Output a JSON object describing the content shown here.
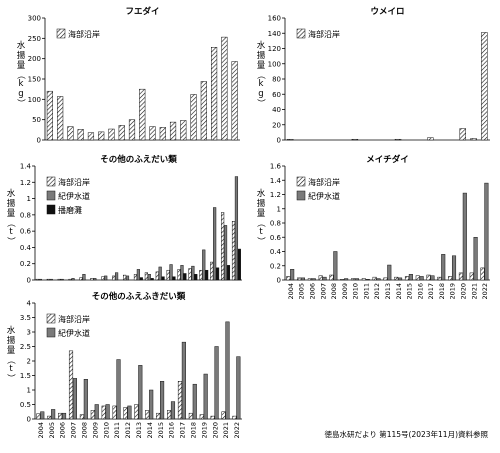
{
  "colors": {
    "axis": "#000000",
    "hatch_line": "#111111",
    "gray_bar": "#7a7a7a",
    "black_bar": "#111111"
  },
  "source_note": "徳島水研だより 第115号(2023年11月)資料参照",
  "x_categories": [
    "2004",
    "2005",
    "2006",
    "2007",
    "2008",
    "2009",
    "2010",
    "2011",
    "2012",
    "2013",
    "2014",
    "2015",
    "2016",
    "2017",
    "2018",
    "2019",
    "2020",
    "2021",
    "2022"
  ],
  "chart_data": [
    {
      "type": "bar",
      "title": "フエダイ",
      "ylabel": "水揚量（kg）",
      "ylim": [
        0,
        300
      ],
      "yticks": [
        0,
        50,
        100,
        150,
        200,
        250,
        300
      ],
      "series": [
        {
          "name": "海部沿岸",
          "pattern": "hatch",
          "values": [
            120,
            107,
            33,
            26,
            18,
            20,
            27,
            36,
            50,
            125,
            33,
            31,
            44,
            48,
            112,
            144,
            228,
            253,
            193
          ]
        }
      ]
    },
    {
      "type": "bar",
      "title": "ウメイロ",
      "ylabel": "水揚量（kg）",
      "ylim": [
        0,
        160
      ],
      "yticks": [
        0,
        20,
        40,
        60,
        80,
        100,
        120,
        140,
        160
      ],
      "series": [
        {
          "name": "海部沿岸",
          "pattern": "hatch",
          "values": [
            1,
            0,
            0,
            0,
            0,
            0,
            1,
            0,
            0,
            0,
            1,
            0,
            0,
            3,
            0,
            0,
            15,
            2,
            141
          ]
        }
      ]
    },
    {
      "type": "bar",
      "title": "その他のふえだい類",
      "ylabel": "水揚量（t）",
      "ylim": [
        0,
        1.4
      ],
      "yticks": [
        0,
        0.2,
        0.4,
        0.6,
        0.8,
        1,
        1.2,
        1.4
      ],
      "series": [
        {
          "name": "海部沿岸",
          "pattern": "hatch",
          "values": [
            0.01,
            0.01,
            0.01,
            0.01,
            0.03,
            0.02,
            0.04,
            0.05,
            0.06,
            0.07,
            0.09,
            0.1,
            0.12,
            0.13,
            0.14,
            0.12,
            0.22,
            0.83,
            0.72
          ]
        },
        {
          "name": "紀伊水道",
          "pattern": "gray",
          "values": [
            0.01,
            0.01,
            0.01,
            0.02,
            0.07,
            0.02,
            0.05,
            0.09,
            0.05,
            0.13,
            0.07,
            0.16,
            0.19,
            0.18,
            0.17,
            0.37,
            0.89,
            0.67,
            1.27
          ]
        },
        {
          "name": "播磨灘",
          "pattern": "black",
          "values": [
            0,
            0,
            0,
            0,
            0,
            0,
            0,
            0,
            0,
            0.03,
            0.02,
            0.04,
            0.04,
            0.08,
            0.07,
            0.12,
            0.15,
            0.18,
            0.38
          ]
        }
      ]
    },
    {
      "type": "bar",
      "title": "メイチダイ",
      "ylabel": "水揚量（t）",
      "ylim": [
        0,
        1.6
      ],
      "yticks": [
        0,
        0.2,
        0.4,
        0.6,
        0.8,
        1,
        1.2,
        1.4,
        1.6
      ],
      "series": [
        {
          "name": "海部沿岸",
          "pattern": "hatch",
          "values": [
            0.05,
            0.03,
            0.02,
            0.06,
            0.07,
            0.01,
            0.02,
            0.02,
            0.04,
            0.03,
            0.04,
            0.05,
            0.06,
            0.07,
            0.04,
            0.05,
            0.1,
            0.1,
            0.17
          ]
        },
        {
          "name": "紀伊水道",
          "pattern": "gray",
          "values": [
            0.15,
            0.03,
            0.02,
            0.04,
            0.4,
            0.02,
            0.02,
            0.01,
            0.02,
            0.21,
            0.03,
            0.08,
            0.05,
            0.06,
            0.36,
            0.34,
            1.22,
            0.6,
            1.36
          ]
        }
      ]
    },
    {
      "type": "bar",
      "title": "その他のふえふきだい類",
      "ylabel": "水揚量（t）",
      "ylim": [
        0,
        4
      ],
      "yticks": [
        0,
        0.5,
        1,
        1.5,
        2,
        2.5,
        3,
        3.5,
        4
      ],
      "series": [
        {
          "name": "海部沿岸",
          "pattern": "hatch",
          "values": [
            0.18,
            0.1,
            0.2,
            2.35,
            0.15,
            0.3,
            0.45,
            0.45,
            0.4,
            0.5,
            0.3,
            0.2,
            0.3,
            1.3,
            0.2,
            0.15,
            0.1,
            0.25,
            0.1
          ]
        },
        {
          "name": "紀伊水道",
          "pattern": "gray",
          "values": [
            0.25,
            0.33,
            0.2,
            1.4,
            1.37,
            0.5,
            0.5,
            2.05,
            0.45,
            1.85,
            1.0,
            1.3,
            0.6,
            2.65,
            1.2,
            1.55,
            2.5,
            3.35,
            2.15
          ]
        }
      ]
    }
  ]
}
